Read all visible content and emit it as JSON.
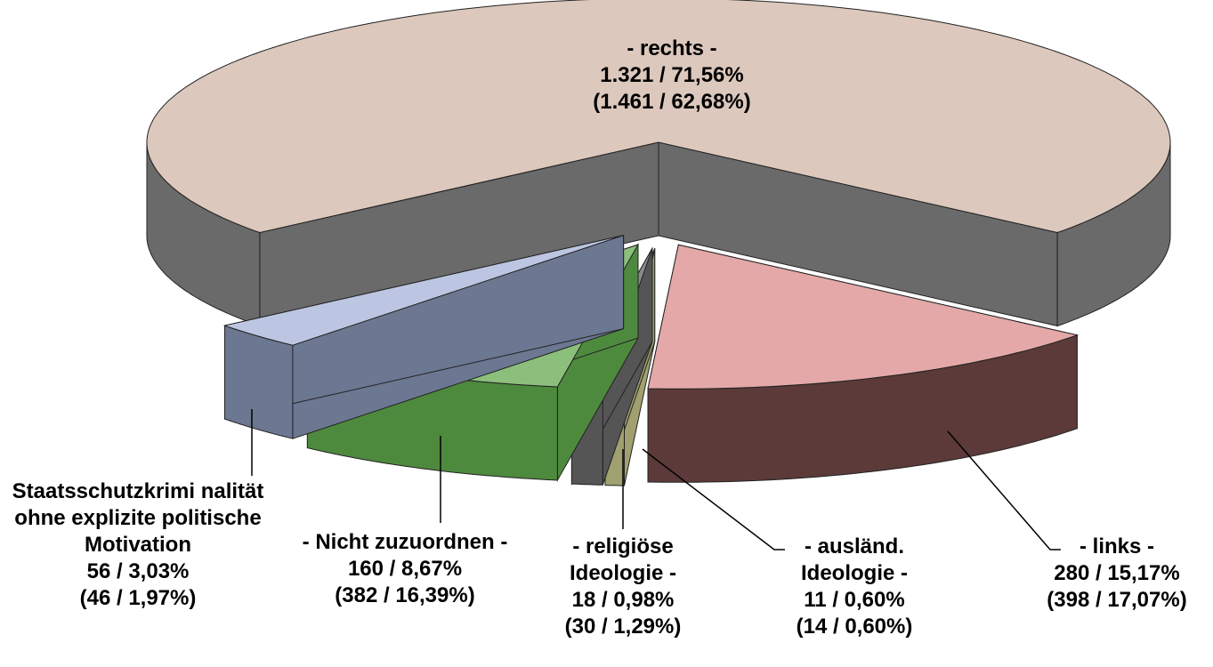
{
  "chart_data": {
    "type": "pie3d",
    "categories": [
      "- rechts -",
      "- links -",
      "- ausländ. Ideologie -",
      "- religiöse Ideologie -",
      "- Nicht zuzuordnen -",
      "Staatsschutzkrimi nalität ohne explizite politische Motivation"
    ],
    "values": [
      1321,
      280,
      11,
      18,
      160,
      56
    ],
    "value_labels": [
      "1.321 / 71,56%",
      "280 / 15,17%",
      "11 / 0,60%",
      "18 / 0,98%",
      "160 / 8,67%",
      "56 / 3,03%"
    ],
    "previous_value_labels": [
      "(1.461 / 62,68%)",
      "(398 / 17,07%)",
      "(14 / 0,60%)",
      "(30 / 1,29%)",
      "(382 / 16,39%)",
      "(46 / 1,97%)"
    ],
    "colors": [
      "#dcc8bc",
      "#e4a8a8",
      "#d6d6a0",
      "#8a8a8a",
      "#8cbf7c",
      "#bcc6e2"
    ],
    "side_colors": [
      "#6a6a6a",
      "#5c3a3a",
      "#a0a070",
      "#555555",
      "#4e8a3e",
      "#6c7792"
    ]
  }
}
